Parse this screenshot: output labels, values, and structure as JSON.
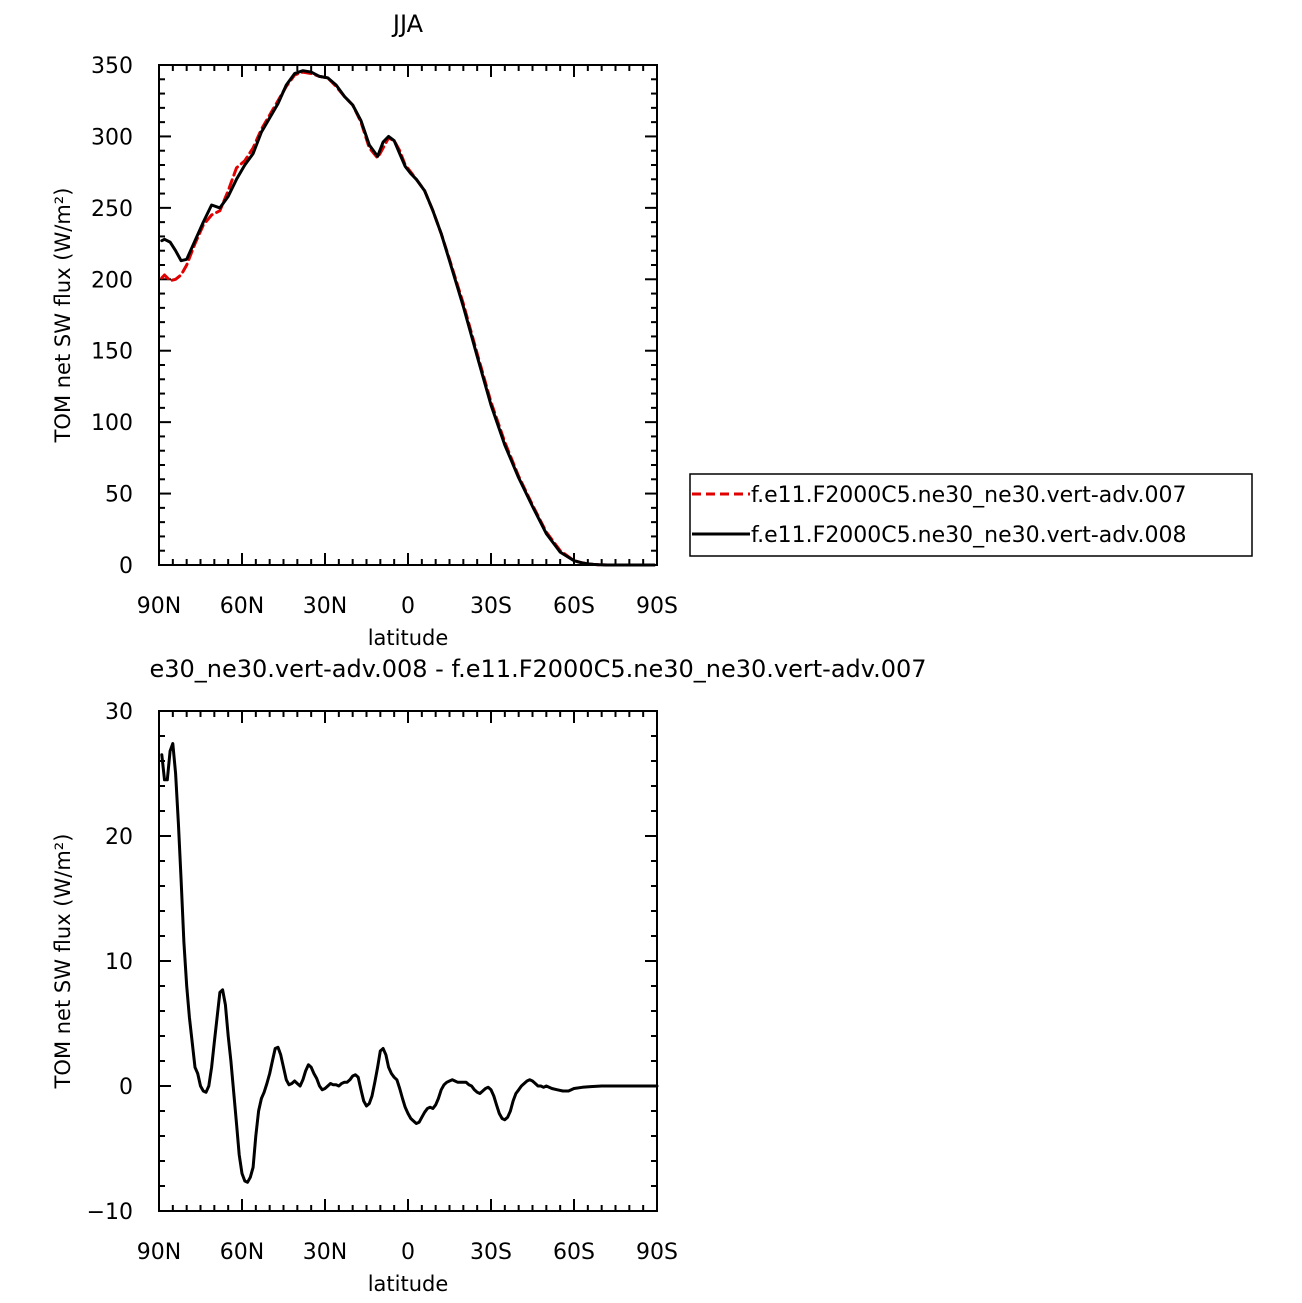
{
  "chart_data": [
    {
      "type": "line",
      "title": "JJA",
      "xlabel": "latitude",
      "ylabel": "TOM net SW flux (W/m²)",
      "xlim": [
        90,
        -90
      ],
      "ylim": [
        0,
        350
      ],
      "x_ticks": [
        90,
        60,
        30,
        0,
        -30,
        -60,
        -90
      ],
      "x_tick_labels": [
        "90N",
        "60N",
        "30N",
        "0",
        "30S",
        "60S",
        "90S"
      ],
      "y_ticks": [
        0,
        50,
        100,
        150,
        200,
        250,
        300,
        350
      ],
      "y_tick_labels": [
        "0",
        "50",
        "100",
        "150",
        "200",
        "250",
        "300",
        "350"
      ],
      "legend_position": "right",
      "series": [
        {
          "name": "f.e11.F2000C5.ne30_ne30.vert-adv.007",
          "color": "#e00000",
          "dash": "dashed",
          "x": [
            89,
            88,
            86,
            84,
            82,
            80,
            77,
            74,
            71,
            68,
            65,
            62,
            59,
            56,
            53,
            50,
            47,
            44,
            41,
            38,
            35,
            32,
            29,
            26,
            23,
            20,
            17,
            14,
            11,
            9,
            7,
            5,
            3,
            1,
            -1,
            -3,
            -6,
            -9,
            -12,
            -15,
            -20,
            -25,
            -30,
            -35,
            -40,
            -45,
            -50,
            -55,
            -60,
            -63,
            -65,
            -67,
            -69,
            -72,
            -75,
            -78,
            -81,
            -85,
            -89
          ],
          "y": [
            201,
            203,
            199,
            200,
            203,
            210,
            225,
            238,
            245,
            248,
            262,
            278,
            283,
            292,
            305,
            315,
            325,
            335,
            343,
            345,
            344,
            342,
            341,
            335,
            328,
            322,
            310,
            292,
            285,
            292,
            299,
            297,
            290,
            280,
            275,
            270,
            262,
            248,
            232,
            214,
            183,
            148,
            114,
            86,
            62,
            42,
            23,
            10,
            3,
            1.5,
            0.8,
            0.4,
            0.2,
            0,
            0,
            0,
            0,
            0,
            0
          ]
        },
        {
          "name": "f.e11.F2000C5.ne30_ne30.vert-adv.008",
          "color": "#000000",
          "dash": "solid",
          "x": [
            89,
            88,
            86,
            84,
            82,
            80,
            77,
            74,
            71,
            68,
            65,
            62,
            59,
            56,
            53,
            50,
            47,
            44,
            41,
            38,
            35,
            32,
            29,
            26,
            23,
            20,
            17,
            14,
            11,
            9,
            7,
            5,
            3,
            1,
            -1,
            -3,
            -6,
            -9,
            -12,
            -15,
            -20,
            -25,
            -30,
            -35,
            -40,
            -45,
            -50,
            -55,
            -60,
            -63,
            -65,
            -67,
            -69,
            -72,
            -75,
            -78,
            -81,
            -85,
            -89
          ],
          "y": [
            227,
            228,
            226,
            220,
            213,
            214,
            227,
            240,
            252,
            250,
            258,
            270,
            280,
            288,
            303,
            313,
            323,
            336,
            344,
            346,
            345,
            342,
            341,
            336,
            328,
            322,
            311,
            294,
            286,
            296,
            300,
            297,
            288,
            279,
            274,
            270,
            262,
            248,
            232,
            213,
            181,
            146,
            112,
            84,
            61,
            41,
            22,
            9,
            3,
            1.5,
            0.8,
            0.4,
            0.2,
            0,
            0,
            0,
            0,
            0,
            0
          ]
        }
      ]
    },
    {
      "type": "line",
      "title": "e30_ne30.vert-adv.008 - f.e11.F2000C5.ne30_ne30.vert-adv.007",
      "xlabel": "latitude",
      "ylabel": "TOM net SW flux (W/m²)",
      "xlim": [
        90,
        -90
      ],
      "ylim": [
        -10,
        30
      ],
      "x_ticks": [
        90,
        60,
        30,
        0,
        -30,
        -60,
        -90
      ],
      "x_tick_labels": [
        "90N",
        "60N",
        "30N",
        "0",
        "30S",
        "60S",
        "90S"
      ],
      "y_ticks": [
        -10,
        0,
        10,
        20,
        30
      ],
      "y_tick_labels": [
        "−10",
        "0",
        "10",
        "20",
        "30"
      ],
      "series": [
        {
          "color": "#000000",
          "dash": "solid",
          "x": [
            89,
            88,
            87,
            86,
            85,
            84,
            83,
            82,
            81,
            80,
            79,
            78,
            77,
            76,
            75,
            74,
            73,
            72,
            71,
            70,
            69,
            68,
            67,
            66,
            65,
            64,
            63,
            62,
            61,
            60,
            59,
            58,
            57,
            56,
            55,
            54,
            53,
            52,
            51,
            50,
            49,
            48,
            47,
            46,
            45,
            44,
            43,
            42,
            41,
            40,
            39,
            38,
            37,
            36,
            35,
            34,
            33,
            32,
            31,
            30,
            29,
            28,
            27,
            26,
            25,
            24,
            23,
            22,
            21,
            20,
            19,
            18,
            17,
            16,
            15,
            14,
            13,
            12,
            11,
            10,
            9,
            8,
            7,
            6,
            5,
            4,
            3,
            2,
            1,
            0,
            -1,
            -2,
            -3,
            -4,
            -5,
            -6,
            -7,
            -8,
            -9,
            -10,
            -11,
            -12,
            -13,
            -14,
            -15,
            -16,
            -17,
            -18,
            -19,
            -20,
            -21,
            -22,
            -23,
            -24,
            -25,
            -26,
            -27,
            -28,
            -29,
            -30,
            -31,
            -32,
            -33,
            -34,
            -35,
            -36,
            -37,
            -38,
            -39,
            -40,
            -41,
            -42,
            -43,
            -44,
            -45,
            -46,
            -47,
            -48,
            -49,
            -50,
            -52,
            -54,
            -56,
            -58,
            -60,
            -63,
            -66,
            -70,
            -75,
            -80,
            -85,
            -90
          ],
          "y": [
            26.5,
            24.5,
            24.5,
            26.8,
            27.4,
            25.0,
            21.0,
            16.5,
            11.5,
            8.0,
            5.5,
            3.5,
            1.5,
            1.0,
            0.0,
            -0.4,
            -0.5,
            0.0,
            1.5,
            3.5,
            5.5,
            7.5,
            7.7,
            6.5,
            4.0,
            2.0,
            -0.5,
            -3.0,
            -5.5,
            -7.0,
            -7.6,
            -7.7,
            -7.3,
            -6.5,
            -4.0,
            -2.0,
            -1.0,
            -0.5,
            0.2,
            1.0,
            2.0,
            3.0,
            3.1,
            2.5,
            1.5,
            0.5,
            0.1,
            0.2,
            0.4,
            0.2,
            0.0,
            0.5,
            1.2,
            1.7,
            1.5,
            1.0,
            0.6,
            0.0,
            -0.3,
            -0.2,
            0.0,
            0.2,
            0.1,
            0.1,
            0.0,
            0.2,
            0.3,
            0.3,
            0.5,
            0.8,
            0.9,
            0.7,
            -0.3,
            -1.2,
            -1.6,
            -1.4,
            -0.8,
            0.3,
            1.5,
            2.8,
            3.0,
            2.5,
            1.5,
            1.0,
            0.7,
            0.5,
            -0.2,
            -1.0,
            -1.7,
            -2.2,
            -2.6,
            -2.8,
            -3.0,
            -2.9,
            -2.5,
            -2.1,
            -1.8,
            -1.7,
            -1.8,
            -1.5,
            -1.0,
            -0.3,
            0.1,
            0.3,
            0.4,
            0.5,
            0.4,
            0.3,
            0.3,
            0.3,
            0.3,
            0.1,
            0.0,
            -0.3,
            -0.5,
            -0.6,
            -0.4,
            -0.2,
            -0.1,
            -0.3,
            -0.8,
            -1.5,
            -2.2,
            -2.6,
            -2.7,
            -2.5,
            -2.0,
            -1.2,
            -0.6,
            -0.3,
            0.0,
            0.2,
            0.4,
            0.5,
            0.4,
            0.2,
            0.0,
            0.0,
            -0.1,
            0.0,
            -0.2,
            -0.3,
            -0.4,
            -0.4,
            -0.2,
            -0.1,
            -0.05,
            0.0,
            0.0,
            0.0,
            0.0,
            0.0
          ]
        }
      ]
    }
  ]
}
